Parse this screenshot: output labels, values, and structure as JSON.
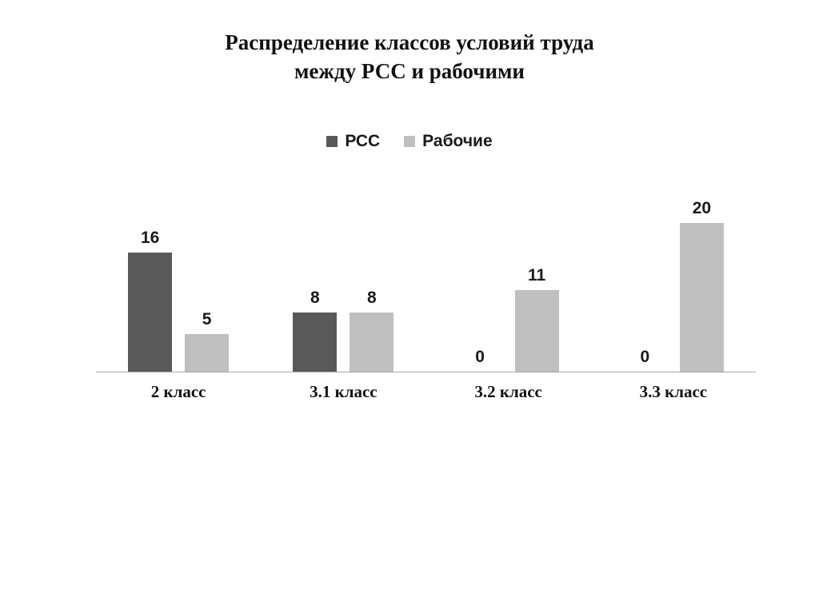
{
  "chart": {
    "title_lines": {
      "0": "Распределение классов условий труда",
      "1": "между РСС и рабочими"
    }
  },
  "chart_data": {
    "type": "bar",
    "title": "Распределение классов условий труда между РСС и рабочими",
    "categories": [
      "2 класс",
      "3.1 класс",
      "3.2 класс",
      "3.3 класс"
    ],
    "series": [
      {
        "name": "РСС",
        "color": "#595959",
        "values": [
          16,
          8,
          0,
          0
        ]
      },
      {
        "name": "Рабочие",
        "color": "#bfbfbf",
        "values": [
          5,
          8,
          11,
          20
        ]
      }
    ],
    "data_labels": [
      16,
      5,
      8,
      8,
      0,
      11,
      0,
      20
    ],
    "xlabel": "",
    "ylabel": "",
    "ylim": [
      0,
      20
    ],
    "grid": false,
    "legend_position": "top",
    "background": "#ffffff",
    "axis_line_color": "#a6a6a6"
  }
}
